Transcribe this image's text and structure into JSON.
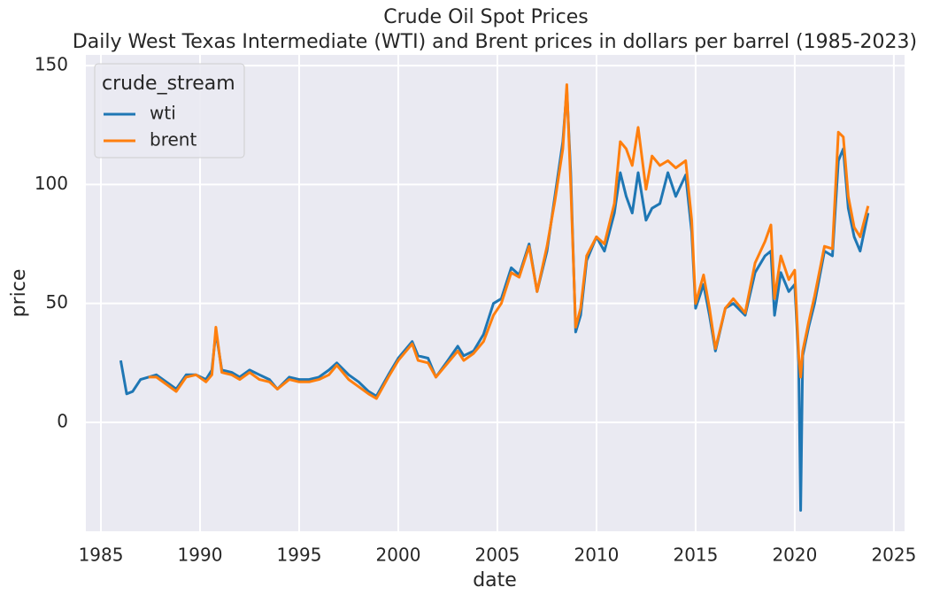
{
  "chart_data": {
    "type": "line",
    "title": "Crude Oil Spot Prices",
    "subtitle": "Daily West Texas Intermediate (WTI) and Brent prices in dollars per barrel (1985-2023)",
    "x_label": "date",
    "y_label": "price",
    "legend_title": "crude_stream",
    "legend_position": "upper-left",
    "grid": true,
    "x": [
      1986.0,
      1986.3,
      1986.6,
      1987.0,
      1987.4,
      1987.8,
      1988.3,
      1988.8,
      1989.3,
      1989.8,
      1990.3,
      1990.6,
      1990.8,
      1991.1,
      1991.6,
      1992.0,
      1992.5,
      1993.0,
      1993.5,
      1993.9,
      1994.5,
      1995.0,
      1995.5,
      1996.0,
      1996.5,
      1996.9,
      1997.5,
      1998.0,
      1998.5,
      1998.9,
      1999.5,
      2000.0,
      2000.7,
      2001.0,
      2001.5,
      2001.9,
      2002.5,
      2003.0,
      2003.3,
      2003.8,
      2004.3,
      2004.8,
      2005.2,
      2005.7,
      2006.1,
      2006.6,
      2007.0,
      2007.5,
      2007.9,
      2008.3,
      2008.5,
      2008.7,
      2008.95,
      2009.2,
      2009.5,
      2010.0,
      2010.4,
      2010.9,
      2011.2,
      2011.5,
      2011.8,
      2012.1,
      2012.5,
      2012.8,
      2013.2,
      2013.6,
      2014.0,
      2014.5,
      2014.8,
      2015.0,
      2015.4,
      2015.7,
      2016.0,
      2016.5,
      2016.9,
      2017.5,
      2018.0,
      2018.5,
      2018.8,
      2018.98,
      2019.3,
      2019.7,
      2020.0,
      2020.2,
      2020.3,
      2020.4,
      2020.7,
      2021.0,
      2021.5,
      2021.9,
      2022.2,
      2022.45,
      2022.7,
      2023.0,
      2023.3,
      2023.7
    ],
    "series": [
      {
        "name": "wti",
        "color": "#1f77b4",
        "values": [
          26,
          12,
          13,
          18,
          19,
          20,
          17,
          14,
          20,
          20,
          18,
          22,
          38,
          22,
          21,
          19,
          22,
          20,
          18,
          14,
          19,
          18,
          18,
          19,
          22,
          25,
          20,
          17,
          13,
          11,
          20,
          27,
          34,
          28,
          27,
          19,
          26,
          32,
          28,
          30,
          37,
          50,
          52,
          65,
          62,
          75,
          55,
          72,
          95,
          118,
          140,
          105,
          38,
          45,
          68,
          78,
          72,
          88,
          105,
          95,
          88,
          105,
          85,
          90,
          92,
          105,
          95,
          104,
          80,
          48,
          58,
          45,
          30,
          48,
          50,
          45,
          63,
          70,
          72,
          45,
          63,
          55,
          58,
          25,
          -37,
          28,
          40,
          50,
          72,
          70,
          110,
          115,
          90,
          78,
          72,
          88
        ]
      },
      {
        "name": "brent",
        "color": "#ff7f0e",
        "values": [
          null,
          null,
          null,
          null,
          19,
          19,
          16,
          13,
          19,
          20,
          17,
          20,
          40,
          21,
          20,
          18,
          21,
          18,
          17,
          14,
          18,
          17,
          17,
          18,
          20,
          24,
          18,
          15,
          12,
          10,
          19,
          26,
          33,
          26,
          25,
          19,
          25,
          30,
          26,
          29,
          34,
          45,
          50,
          63,
          61,
          74,
          55,
          74,
          93,
          115,
          142,
          100,
          40,
          48,
          70,
          78,
          75,
          92,
          118,
          115,
          108,
          124,
          98,
          112,
          108,
          110,
          107,
          110,
          85,
          50,
          62,
          48,
          31,
          48,
          52,
          46,
          67,
          76,
          83,
          52,
          70,
          60,
          64,
          28,
          19,
          30,
          42,
          53,
          74,
          73,
          122,
          120,
          95,
          82,
          78,
          91
        ]
      }
    ],
    "xlim": [
      1984.24,
      2025.54
    ],
    "xticks": [
      1985,
      1990,
      1995,
      2000,
      2005,
      2010,
      2015,
      2020,
      2025
    ],
    "ylim": [
      -45.8,
      154.5
    ],
    "yticks": [
      0,
      50,
      100,
      150
    ]
  }
}
